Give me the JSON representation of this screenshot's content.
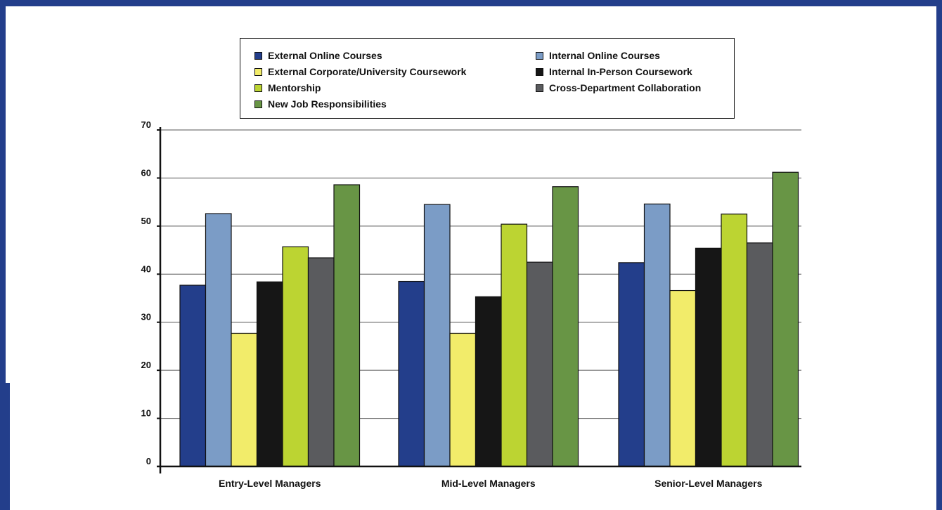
{
  "chart_data": {
    "type": "bar",
    "title": "",
    "xlabel": "",
    "ylabel": "",
    "ylim": [
      0,
      70
    ],
    "yticks": [
      0,
      10,
      20,
      30,
      40,
      50,
      60,
      70
    ],
    "grid": true,
    "legend_position": "top",
    "categories": [
      "Entry-Level Managers",
      "Mid-Level Managers",
      "Senior-Level Managers"
    ],
    "series": [
      {
        "name": "External Online Courses",
        "color": "#233e8b",
        "values": [
          37.7,
          38.5,
          42.4
        ]
      },
      {
        "name": "Internal Online Courses",
        "color": "#7b9cc6",
        "values": [
          52.6,
          54.5,
          54.6
        ]
      },
      {
        "name": "External Corporate/University Coursework",
        "color": "#f2ec6a",
        "values": [
          27.7,
          27.7,
          36.6
        ]
      },
      {
        "name": "Internal In-Person Coursework",
        "color": "#161616",
        "values": [
          38.4,
          35.3,
          45.4
        ]
      },
      {
        "name": "Mentorship",
        "color": "#bcd432",
        "values": [
          45.7,
          50.4,
          52.5
        ]
      },
      {
        "name": "Cross-Department Collaboration",
        "color": "#5a5b5e",
        "values": [
          43.4,
          42.5,
          46.5
        ]
      },
      {
        "name": "New Job Responsibilities",
        "color": "#689545",
        "values": [
          58.6,
          58.2,
          61.2
        ]
      }
    ]
  }
}
